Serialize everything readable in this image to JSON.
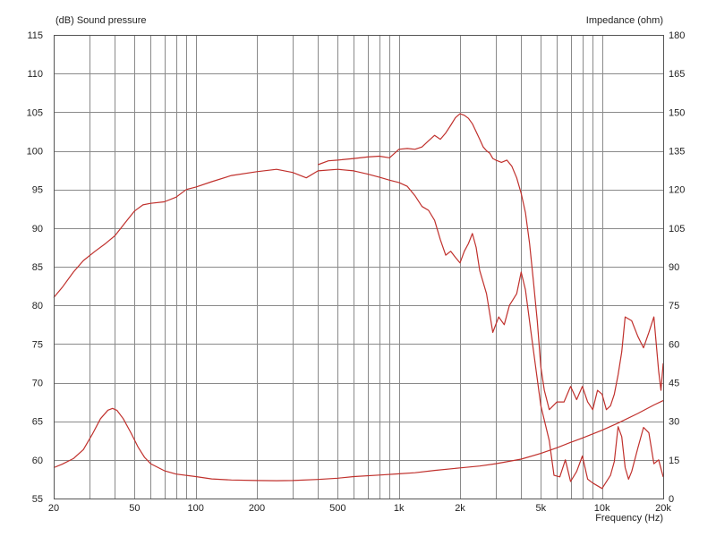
{
  "chart_data": {
    "type": "line",
    "left_axis_title": "(dB)  Sound pressure",
    "right_axis_title": "Impedance  (ohm)",
    "xlabel": "Frequency  (Hz)",
    "x_scale": "log",
    "xlim": [
      20,
      20000
    ],
    "ylim_left": [
      55,
      115
    ],
    "ylim_right": [
      0,
      180
    ],
    "grid": true,
    "x_ticks": [
      {
        "v": 20,
        "label": "20"
      },
      {
        "v": 50,
        "label": "50"
      },
      {
        "v": 100,
        "label": "100"
      },
      {
        "v": 200,
        "label": "200"
      },
      {
        "v": 500,
        "label": "500"
      },
      {
        "v": 1000,
        "label": "1k"
      },
      {
        "v": 2000,
        "label": "2k"
      },
      {
        "v": 5000,
        "label": "5k"
      },
      {
        "v": 10000,
        "label": "10k"
      },
      {
        "v": 20000,
        "label": "20k"
      }
    ],
    "y_ticks_left": [
      115,
      110,
      105,
      100,
      95,
      90,
      85,
      80,
      75,
      70,
      65,
      60,
      55
    ],
    "y_ticks_right": [
      180,
      165,
      150,
      135,
      120,
      105,
      90,
      75,
      60,
      45,
      30,
      15,
      0
    ],
    "line_color": "#c0302c",
    "grid_color": "#8a8a8a",
    "series": [
      {
        "axis": "left",
        "points": [
          [
            20,
            81
          ],
          [
            22,
            82.3
          ],
          [
            25,
            84.3
          ],
          [
            28,
            85.8
          ],
          [
            32,
            87
          ],
          [
            36,
            88
          ],
          [
            40,
            89
          ],
          [
            45,
            90.7
          ],
          [
            50,
            92.2
          ],
          [
            55,
            93
          ],
          [
            60,
            93.2
          ],
          [
            70,
            93.4
          ],
          [
            80,
            94
          ],
          [
            90,
            95
          ],
          [
            100,
            95.3
          ],
          [
            120,
            96
          ],
          [
            150,
            96.8
          ],
          [
            200,
            97.3
          ],
          [
            250,
            97.6
          ],
          [
            300,
            97.2
          ],
          [
            350,
            96.5
          ],
          [
            400,
            97.4
          ],
          [
            500,
            97.6
          ],
          [
            600,
            97.4
          ],
          [
            700,
            97
          ],
          [
            800,
            96.6
          ],
          [
            900,
            96.2
          ],
          [
            1000,
            95.9
          ],
          [
            1100,
            95.4
          ],
          [
            1200,
            94.2
          ],
          [
            1300,
            92.8
          ],
          [
            1400,
            92.3
          ],
          [
            1500,
            91
          ],
          [
            1600,
            88.5
          ],
          [
            1700,
            86.5
          ],
          [
            1800,
            87
          ],
          [
            1900,
            86.2
          ],
          [
            2000,
            85.5
          ],
          [
            2100,
            87
          ],
          [
            2200,
            88
          ],
          [
            2300,
            89.3
          ],
          [
            2400,
            87.5
          ],
          [
            2500,
            84.5
          ],
          [
            2700,
            81.5
          ],
          [
            2900,
            76.5
          ],
          [
            3100,
            78.5
          ],
          [
            3300,
            77.5
          ],
          [
            3500,
            80
          ],
          [
            3800,
            81.5
          ],
          [
            4000,
            84.3
          ],
          [
            4200,
            82
          ],
          [
            4500,
            76
          ],
          [
            5000,
            67
          ],
          [
            5500,
            62.5
          ],
          [
            5800,
            58
          ],
          [
            6200,
            57.8
          ],
          [
            6600,
            60
          ],
          [
            7000,
            57.2
          ],
          [
            7500,
            58.5
          ],
          [
            8000,
            60.5
          ],
          [
            8500,
            57.5
          ],
          [
            9000,
            57
          ],
          [
            10000,
            56.3
          ],
          [
            11000,
            58
          ],
          [
            11500,
            59.8
          ],
          [
            12000,
            64.3
          ],
          [
            12500,
            63
          ],
          [
            13000,
            59
          ],
          [
            13500,
            57.5
          ],
          [
            14000,
            58.5
          ],
          [
            15000,
            61.5
          ],
          [
            16000,
            64.2
          ],
          [
            17000,
            63.5
          ],
          [
            18000,
            59.5
          ],
          [
            19000,
            60
          ],
          [
            20000,
            57.8
          ]
        ]
      },
      {
        "axis": "left",
        "points": [
          [
            400,
            98.2
          ],
          [
            450,
            98.7
          ],
          [
            500,
            98.8
          ],
          [
            600,
            99
          ],
          [
            700,
            99.2
          ],
          [
            800,
            99.3
          ],
          [
            900,
            99.1
          ],
          [
            1000,
            100.2
          ],
          [
            1100,
            100.3
          ],
          [
            1200,
            100.2
          ],
          [
            1300,
            100.5
          ],
          [
            1400,
            101.3
          ],
          [
            1500,
            102
          ],
          [
            1600,
            101.5
          ],
          [
            1700,
            102.3
          ],
          [
            1800,
            103.3
          ],
          [
            1900,
            104.3
          ],
          [
            2000,
            104.8
          ],
          [
            2100,
            104.6
          ],
          [
            2200,
            104.2
          ],
          [
            2300,
            103.5
          ],
          [
            2500,
            101.5
          ],
          [
            2600,
            100.5
          ],
          [
            2700,
            100
          ],
          [
            2800,
            99.7
          ],
          [
            2900,
            99
          ],
          [
            3000,
            98.8
          ],
          [
            3200,
            98.5
          ],
          [
            3400,
            98.8
          ],
          [
            3600,
            98
          ],
          [
            3800,
            96.5
          ],
          [
            4000,
            94.5
          ],
          [
            4200,
            92
          ],
          [
            4400,
            88
          ],
          [
            4600,
            83
          ],
          [
            4800,
            78
          ],
          [
            5000,
            72
          ],
          [
            5200,
            69
          ],
          [
            5500,
            66.5
          ],
          [
            6000,
            67.5
          ],
          [
            6500,
            67.5
          ],
          [
            7000,
            69.5
          ],
          [
            7500,
            67.8
          ],
          [
            8000,
            69.5
          ],
          [
            8500,
            67.5
          ],
          [
            9000,
            66.5
          ],
          [
            9500,
            69
          ],
          [
            10000,
            68.5
          ],
          [
            10500,
            66.5
          ],
          [
            11000,
            67
          ],
          [
            11500,
            68.5
          ],
          [
            12000,
            71
          ],
          [
            12500,
            74
          ],
          [
            13000,
            78.5
          ],
          [
            14000,
            78
          ],
          [
            15000,
            76
          ],
          [
            16000,
            74.5
          ],
          [
            17000,
            76.5
          ],
          [
            18000,
            78.5
          ],
          [
            19000,
            71.5
          ],
          [
            19500,
            69
          ],
          [
            20000,
            72.5
          ]
        ]
      },
      {
        "axis": "right",
        "points": [
          [
            20,
            12
          ],
          [
            22,
            13.3
          ],
          [
            25,
            15.5
          ],
          [
            28,
            19
          ],
          [
            31,
            25
          ],
          [
            34,
            31
          ],
          [
            37,
            34.3
          ],
          [
            39,
            35
          ],
          [
            41,
            34.2
          ],
          [
            44,
            31
          ],
          [
            48,
            25.5
          ],
          [
            52,
            20
          ],
          [
            56,
            16
          ],
          [
            60,
            13.5
          ],
          [
            70,
            10.8
          ],
          [
            80,
            9.5
          ],
          [
            100,
            8.5
          ],
          [
            120,
            7.6
          ],
          [
            150,
            7.2
          ],
          [
            200,
            7
          ],
          [
            250,
            6.9
          ],
          [
            300,
            7
          ],
          [
            400,
            7.4
          ],
          [
            500,
            7.9
          ],
          [
            600,
            8.5
          ],
          [
            800,
            9.1
          ],
          [
            1000,
            9.6
          ],
          [
            1200,
            10
          ],
          [
            1500,
            10.9
          ],
          [
            2000,
            11.9
          ],
          [
            2500,
            12.6
          ],
          [
            3000,
            13.5
          ],
          [
            4000,
            15.3
          ],
          [
            5000,
            17.5
          ],
          [
            6000,
            19.7
          ],
          [
            7000,
            21.8
          ],
          [
            8000,
            23.5
          ],
          [
            10000,
            26.5
          ],
          [
            12000,
            29.3
          ],
          [
            15000,
            33
          ],
          [
            18000,
            36.3
          ],
          [
            20000,
            38
          ]
        ]
      }
    ]
  }
}
